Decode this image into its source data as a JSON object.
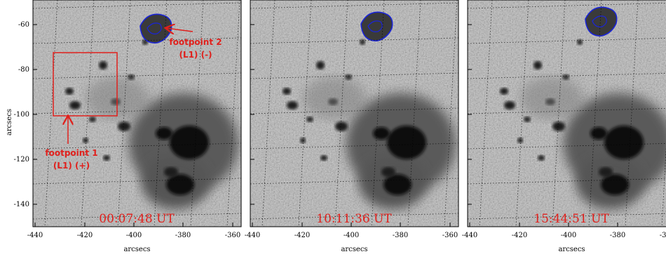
{
  "panels": [
    {
      "id": "panel-1",
      "time_label": "00:07:48 UT",
      "show_box": true,
      "annotations": [
        {
          "id": "fp2",
          "lines": [
            "footpoint 2",
            "(L1)  (-)"
          ]
        },
        {
          "id": "fp1",
          "lines": [
            "footpoint 1",
            "(L1)  (+)"
          ]
        }
      ]
    },
    {
      "id": "panel-2",
      "time_label": "10:11:36 UT",
      "show_box": false,
      "annotations": []
    },
    {
      "id": "panel-3",
      "time_label": "15:44:51 UT",
      "show_box": false,
      "annotations": []
    }
  ],
  "axes": {
    "x_label": "arcsecs",
    "y_label": "arcsecs",
    "x_ticks": [
      "-440",
      "-420",
      "-400",
      "-380",
      "-360"
    ],
    "y_ticks": [
      "-60",
      "-80",
      "-100",
      "-120",
      "-140"
    ]
  },
  "colors": {
    "annotation": "#e0201c",
    "contour": "#1a24d8",
    "background_gray": "#b4b4b4"
  }
}
